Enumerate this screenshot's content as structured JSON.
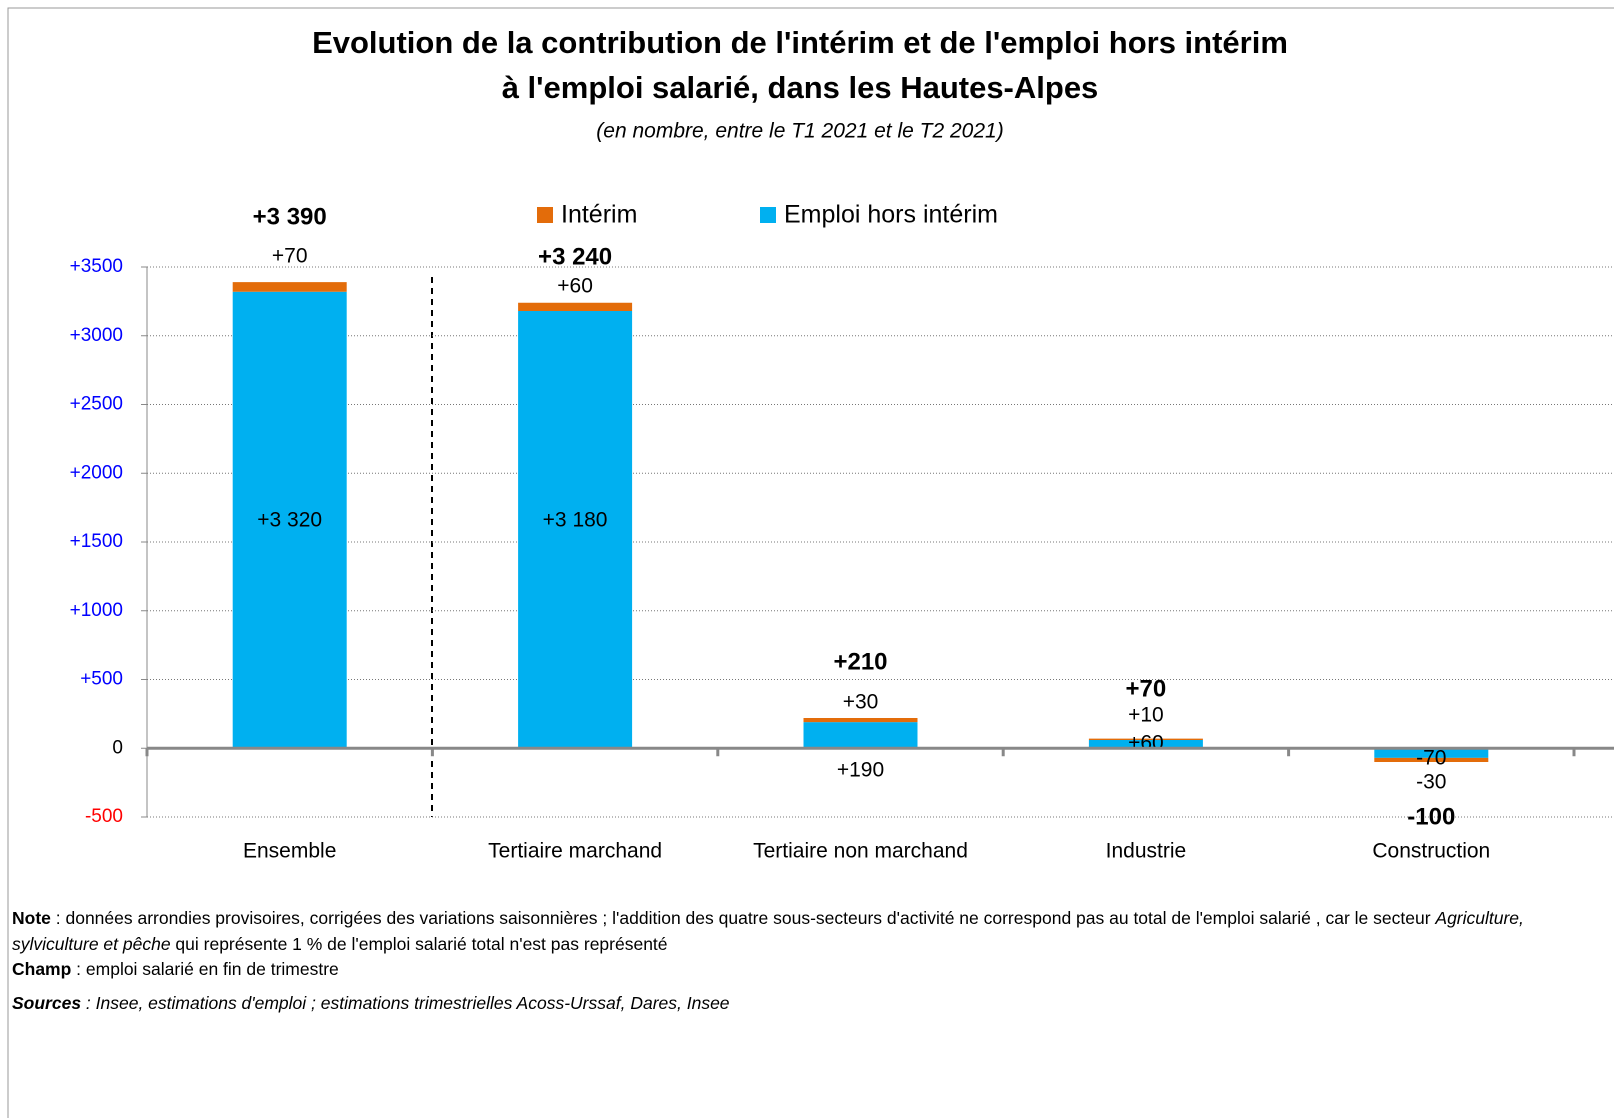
{
  "chart_data": {
    "type": "stacked_bar",
    "title": [
      "Evolution de la contribution de l'intérim et de l'emploi hors intérim",
      "à l'emploi salarié, dans les Hautes-Alpes"
    ],
    "subtitle": "(en nombre, entre le T1 2021 et le T2 2021)",
    "categories": [
      "Ensemble",
      "Tertiaire marchand",
      "Tertiaire non marchand",
      "Industrie",
      "Construction"
    ],
    "series": [
      {
        "name": "Emploi hors intérim",
        "color": "#00b0f0",
        "values": [
          3320,
          3180,
          190,
          60,
          -70
        ],
        "value_labels": [
          "+3 320",
          "+3 180",
          "+190",
          "+60",
          "-70"
        ]
      },
      {
        "name": "Intérim",
        "color": "#e36c0a",
        "values": [
          70,
          60,
          30,
          10,
          -30
        ],
        "value_labels": [
          "+70",
          "+60",
          "+30",
          "+10",
          "-30"
        ]
      }
    ],
    "legend_order": [
      1,
      0
    ],
    "totals": {
      "values": [
        3390,
        3240,
        210,
        70,
        -100
      ],
      "value_labels": [
        "+3 390",
        "+3 240",
        "+210",
        "+70",
        "-100"
      ]
    },
    "ylim": [
      -500,
      3500
    ],
    "yticks": [
      -500,
      0,
      {
        "value": 500,
        "label": "+500"
      },
      {
        "value": 1000,
        "label": "+1000"
      },
      {
        "value": 1500,
        "label": "+1500"
      },
      {
        "value": 2000,
        "label": "+2000"
      },
      {
        "value": 2500,
        "label": "+2500"
      },
      {
        "value": 3000,
        "label": "+3000"
      },
      {
        "value": 3500,
        "label": "+3500"
      }
    ],
    "grid": true
  },
  "notes": [
    [
      {
        "text": "Note",
        "style": "bold"
      },
      {
        "text": " : données arrondies provisoires, corrigées des variations saisonnières ; l'addition des quatre sous-secteurs d'activité ne correspond pas au total de l'emploi salarié , car le secteur ",
        "style": "normal"
      },
      {
        "text": "Agriculture, sylviculture et pêche",
        "style": "italic"
      },
      {
        "text": " qui représente 1 % de l'emploi salarié total n'est pas représenté",
        "style": "normal"
      }
    ],
    [
      {
        "text": "Champ",
        "style": "bold"
      },
      {
        "text": " : emploi salarié en fin de trimestre",
        "style": "normal"
      }
    ],
    [
      {
        "text": "Sources",
        "style": "bold-italic"
      },
      {
        "text": " : Insee, estimations d'emploi ; estimations trimestrielles Acoss-Urssaf, Dares, Insee",
        "style": "italic"
      }
    ]
  ]
}
